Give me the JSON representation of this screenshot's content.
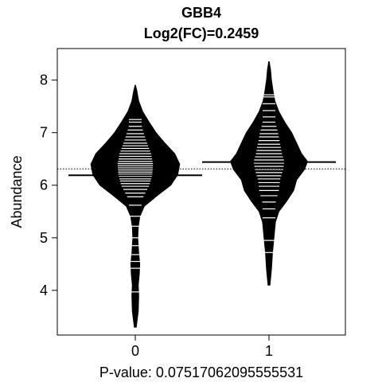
{
  "chart_data": {
    "type": "beanplot",
    "title": "GBB4",
    "subtitle": "Log2(FC)=0.2459",
    "xlabel": "P-value: 0.07517062095555531",
    "ylabel": "Abundance",
    "categories": [
      "0",
      "1"
    ],
    "ylim": [
      3.15,
      8.6
    ],
    "yticks": [
      4,
      5,
      6,
      7,
      8
    ],
    "overall_mean": 6.31,
    "group_means": [
      6.19,
      6.44
    ],
    "densities": [
      {
        "category": "0",
        "profile": [
          [
            3.3,
            0.02
          ],
          [
            3.6,
            0.06
          ],
          [
            3.9,
            0.07
          ],
          [
            4.1,
            0.06
          ],
          [
            4.3,
            0.08
          ],
          [
            4.5,
            0.09
          ],
          [
            4.7,
            0.07
          ],
          [
            4.85,
            0.06
          ],
          [
            5.0,
            0.05
          ],
          [
            5.2,
            0.06
          ],
          [
            5.4,
            0.09
          ],
          [
            5.6,
            0.18
          ],
          [
            5.8,
            0.44
          ],
          [
            6.0,
            0.72
          ],
          [
            6.2,
            0.86
          ],
          [
            6.4,
            0.9
          ],
          [
            6.6,
            0.8
          ],
          [
            6.8,
            0.6
          ],
          [
            7.0,
            0.42
          ],
          [
            7.2,
            0.28
          ],
          [
            7.4,
            0.15
          ],
          [
            7.6,
            0.07
          ],
          [
            7.8,
            0.03
          ],
          [
            7.9,
            0.005
          ]
        ],
        "observations": [
          3.97,
          4.42,
          4.55,
          4.68,
          4.85,
          5.0,
          5.22,
          5.41,
          5.62,
          5.78,
          5.85,
          5.92,
          5.98,
          6.03,
          6.08,
          6.12,
          6.17,
          6.21,
          6.25,
          6.29,
          6.33,
          6.37,
          6.41,
          6.45,
          6.5,
          6.55,
          6.6,
          6.65,
          6.7,
          6.75,
          6.8,
          6.86,
          6.92,
          6.98,
          7.05,
          7.12,
          7.2,
          7.25
        ]
      },
      {
        "category": "1",
        "profile": [
          [
            4.1,
            0.02
          ],
          [
            4.4,
            0.05
          ],
          [
            4.7,
            0.07
          ],
          [
            5.0,
            0.1
          ],
          [
            5.3,
            0.13
          ],
          [
            5.5,
            0.2
          ],
          [
            5.7,
            0.36
          ],
          [
            5.9,
            0.5
          ],
          [
            6.1,
            0.56
          ],
          [
            6.3,
            0.72
          ],
          [
            6.45,
            0.78
          ],
          [
            6.6,
            0.66
          ],
          [
            6.8,
            0.56
          ],
          [
            7.0,
            0.46
          ],
          [
            7.2,
            0.32
          ],
          [
            7.4,
            0.2
          ],
          [
            7.6,
            0.12
          ],
          [
            7.8,
            0.08
          ],
          [
            8.0,
            0.05
          ],
          [
            8.2,
            0.03
          ],
          [
            8.35,
            0.005
          ]
        ],
        "observations": [
          4.72,
          4.95,
          5.38,
          5.55,
          5.68,
          5.8,
          5.9,
          5.98,
          6.05,
          6.12,
          6.18,
          6.24,
          6.3,
          6.36,
          6.42,
          6.48,
          6.54,
          6.6,
          6.66,
          6.72,
          6.78,
          6.85,
          6.92,
          6.98,
          7.05,
          7.12,
          7.2,
          7.3,
          7.42,
          7.55,
          7.68,
          7.72
        ]
      }
    ],
    "grid": false,
    "legend": "none",
    "colors": {
      "bean_fill": "#000000",
      "observation_line": "#ffffff",
      "mean_line": "#000000"
    }
  }
}
